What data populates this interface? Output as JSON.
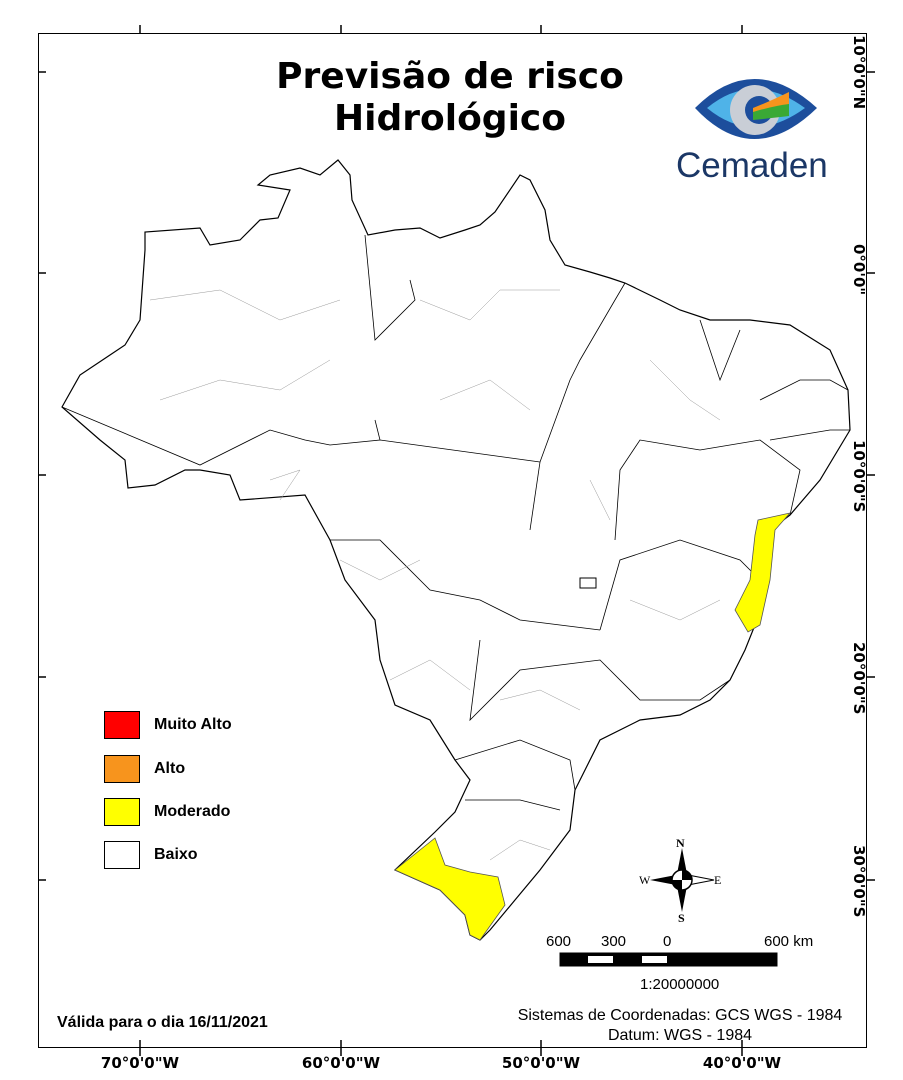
{
  "title": {
    "line1": "Previsão de risco",
    "line2": "Hidrológico"
  },
  "logo": {
    "text": "Cemaden"
  },
  "axes": {
    "latitude": [
      "10°0'0\"N",
      "0°0'0\"",
      "10°0'0\"S",
      "20°0'0\"S",
      "30°0'0\"S"
    ],
    "longitude": [
      "70°0'0\"W",
      "60°0'0\"W",
      "50°0'0\"W",
      "40°0'0\"W"
    ]
  },
  "legend": [
    {
      "label": "Muito Alto",
      "color": "#ff0000"
    },
    {
      "label": "Alto",
      "color": "#f7941d"
    },
    {
      "label": "Moderado",
      "color": "#ffff00"
    },
    {
      "label": "Baixo",
      "color": "#ffffff"
    }
  ],
  "compass": {
    "n": "N",
    "s": "S",
    "e": "E",
    "w": "W"
  },
  "scalebar": {
    "labels": [
      "600",
      "300",
      "0",
      "600 km"
    ],
    "scale": "1:20000000"
  },
  "valid_date": "Válida para o dia 16/11/2021",
  "coordinates": {
    "system": "Sistemas de Coordenadas: GCS WGS - 1984",
    "datum": "Datum: WGS - 1984"
  }
}
